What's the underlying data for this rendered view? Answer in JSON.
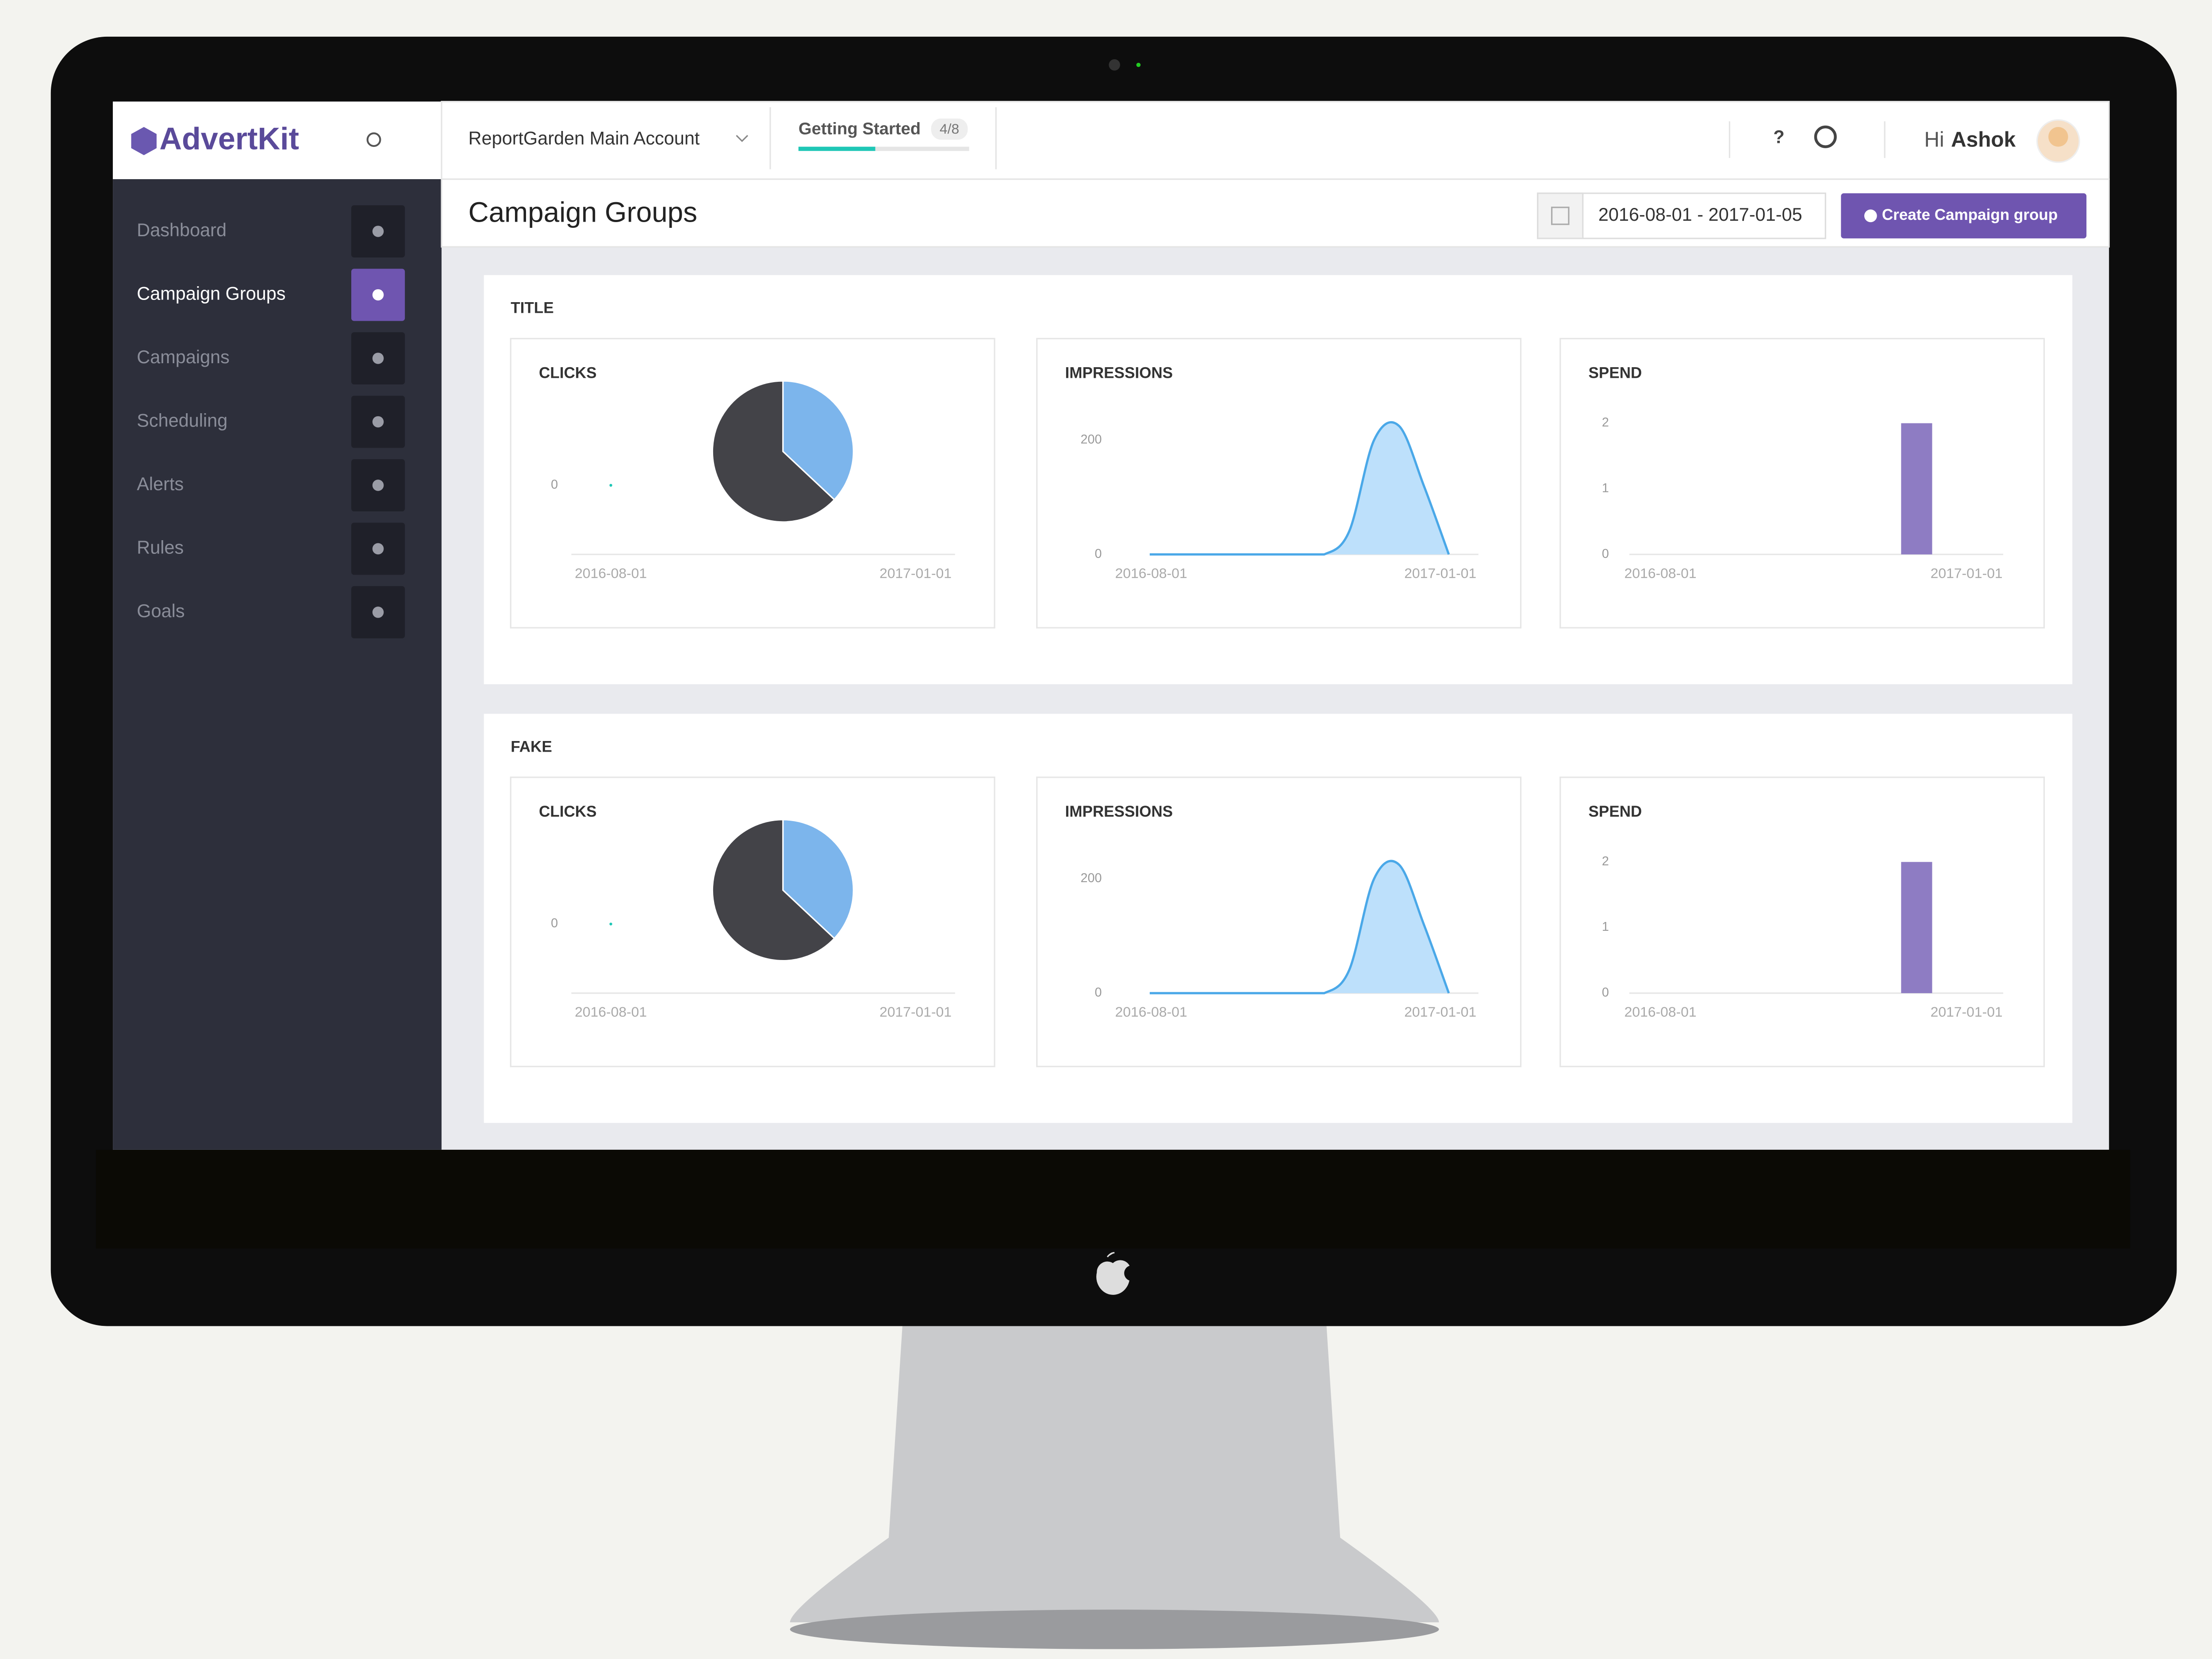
{
  "brand": "AdvertKit",
  "account": "ReportGarden Main Account",
  "getting_started": {
    "label": "Getting Started",
    "badge": "4/8",
    "progress": 45
  },
  "help": "?",
  "greeting": {
    "hi": "Hi",
    "name": "Ashok"
  },
  "sidebar": {
    "items": [
      "Dashboard",
      "Campaign Groups",
      "Campaigns",
      "Scheduling",
      "Alerts",
      "Rules",
      "Goals"
    ],
    "active": 1
  },
  "page_title": "Campaign Groups",
  "date_range": "2016-08-01 - 2017-01-05",
  "create_button": "Create Campaign group",
  "groups": [
    {
      "name": "TITLE",
      "charts": [
        {
          "type": "pie",
          "title": "CLICKS",
          "values": [
            37,
            63
          ],
          "colors": [
            "#7cb5ec",
            "#434348"
          ],
          "yticks": [
            0
          ],
          "xlabels": [
            "2016-08-01",
            "2017-01-01"
          ]
        },
        {
          "type": "area",
          "title": "IMPRESSIONS",
          "values": [
            0,
            0,
            0,
            0,
            0,
            0,
            0,
            0,
            40,
            200,
            225,
            120,
            0
          ],
          "color": "#bde0fb",
          "line_color": "#4aa8e8",
          "ylim": [
            0,
            240
          ],
          "yticks": [
            0,
            200
          ],
          "xlabels": [
            "2016-08-01",
            "2017-01-01"
          ]
        },
        {
          "type": "bar",
          "title": "SPEND",
          "values": [
            0,
            0,
            0,
            0,
            0,
            0,
            0,
            0,
            2,
            0,
            0
          ],
          "color": "#8e7cc3",
          "ylim": [
            0,
            2
          ],
          "yticks": [
            0,
            1,
            2
          ],
          "xlabels": [
            "2016-08-01",
            "2017-01-01"
          ]
        }
      ]
    },
    {
      "name": "FAKE",
      "charts": [
        {
          "type": "pie",
          "title": "CLICKS",
          "values": [
            37,
            63
          ],
          "colors": [
            "#7cb5ec",
            "#434348"
          ],
          "yticks": [
            0
          ],
          "xlabels": [
            "2016-08-01",
            "2017-01-01"
          ]
        },
        {
          "type": "area",
          "title": "IMPRESSIONS",
          "values": [
            0,
            0,
            0,
            0,
            0,
            0,
            0,
            0,
            40,
            200,
            225,
            120,
            0
          ],
          "color": "#bde0fb",
          "line_color": "#4aa8e8",
          "ylim": [
            0,
            240
          ],
          "yticks": [
            0,
            200
          ],
          "xlabels": [
            "2016-08-01",
            "2017-01-01"
          ]
        },
        {
          "type": "bar",
          "title": "SPEND",
          "values": [
            0,
            0,
            0,
            0,
            0,
            0,
            0,
            0,
            2,
            0,
            0
          ],
          "color": "#8e7cc3",
          "ylim": [
            0,
            2
          ],
          "yticks": [
            0,
            1,
            2
          ],
          "xlabels": [
            "2016-08-01",
            "2017-01-01"
          ]
        }
      ]
    }
  ]
}
